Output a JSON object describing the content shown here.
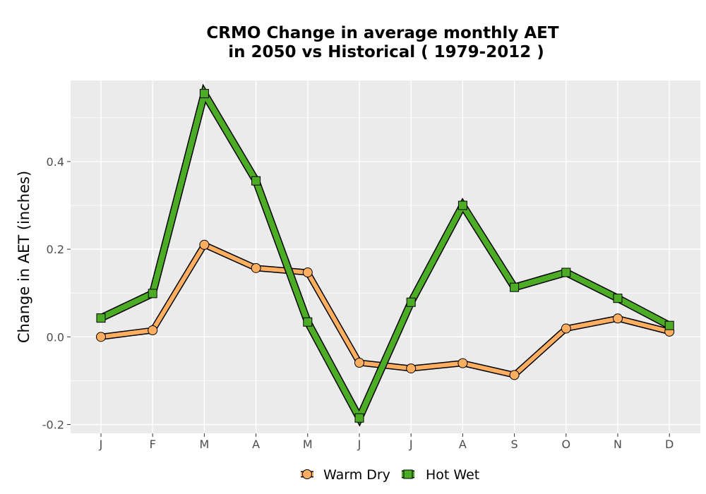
{
  "chart_data": {
    "type": "line",
    "title_line1": "CRMO  Change in average monthly AET",
    "title_line2": "in 2050 vs Historical ( 1979-2012 )",
    "xlabel": "",
    "ylabel": "Change in AET (inches)",
    "categories": [
      "J",
      "F",
      "M",
      "A",
      "M",
      "J",
      "J",
      "A",
      "S",
      "O",
      "N",
      "D"
    ],
    "ylim": [
      -0.22,
      0.585
    ],
    "yticks": [
      -0.2,
      0.0,
      0.2,
      0.4
    ],
    "ytick_labels": [
      "-0.2",
      "0.0",
      "0.2",
      "0.4"
    ],
    "grid": true,
    "legend_position": "bottom",
    "series": [
      {
        "name": "Warm Dry",
        "marker": "circle",
        "color": "#FDAE61",
        "values": [
          0.0,
          0.015,
          0.21,
          0.157,
          0.147,
          -0.059,
          -0.072,
          -0.06,
          -0.087,
          0.019,
          0.042,
          0.012
        ]
      },
      {
        "name": "Hot Wet",
        "marker": "square",
        "color": "#4DAC26",
        "values": [
          0.043,
          0.099,
          0.555,
          0.356,
          0.034,
          -0.185,
          0.079,
          0.3,
          0.113,
          0.147,
          0.088,
          0.026
        ]
      }
    ]
  },
  "colors": {
    "panel_background": "#EBEBEB",
    "grid": "#FFFFFF",
    "outline": "#000000"
  }
}
